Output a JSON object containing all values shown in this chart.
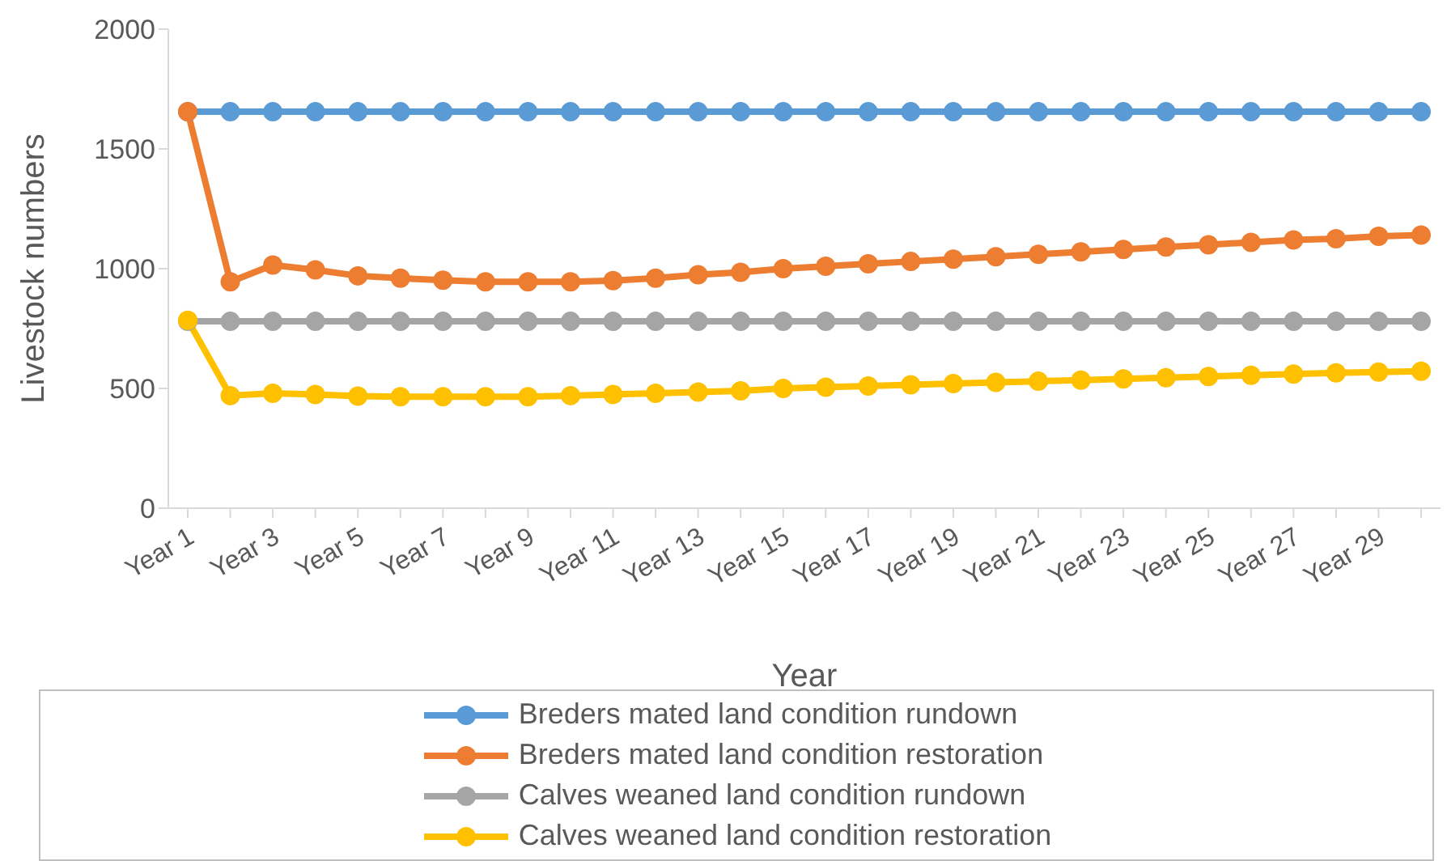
{
  "chart_data": {
    "type": "line",
    "xlabel": "Year",
    "ylabel": "Livestock numbers",
    "categories": [
      "Year 1",
      null,
      "Year 3",
      null,
      "Year 5",
      null,
      "Year 7",
      null,
      "Year 9",
      null,
      "Year 11",
      null,
      "Year 13",
      null,
      "Year 15",
      null,
      "Year 17",
      null,
      "Year 19",
      null,
      "Year 21",
      null,
      "Year 23",
      null,
      "Year 25",
      null,
      "Year 27",
      null,
      "Year 29",
      null
    ],
    "series": [
      {
        "name": "Breders mated land condition rundown",
        "color": "#5b9bd5",
        "values": [
          1655,
          1655,
          1655,
          1655,
          1655,
          1655,
          1655,
          1655,
          1655,
          1655,
          1655,
          1655,
          1655,
          1655,
          1655,
          1655,
          1655,
          1655,
          1655,
          1655,
          1655,
          1655,
          1655,
          1655,
          1655,
          1655,
          1655,
          1655,
          1655,
          1655
        ]
      },
      {
        "name": "Breders mated land condition restoration",
        "color": "#ed7d31",
        "values": [
          1655,
          945,
          1015,
          995,
          970,
          960,
          952,
          945,
          945,
          945,
          950,
          960,
          975,
          985,
          1000,
          1010,
          1020,
          1030,
          1040,
          1050,
          1060,
          1070,
          1080,
          1090,
          1100,
          1110,
          1120,
          1125,
          1135,
          1140
        ]
      },
      {
        "name": "Calves weaned land condition rundown",
        "color": "#a5a5a5",
        "values": [
          780,
          780,
          780,
          780,
          780,
          780,
          780,
          780,
          780,
          780,
          780,
          780,
          780,
          780,
          780,
          780,
          780,
          780,
          780,
          780,
          780,
          780,
          780,
          780,
          780,
          780,
          780,
          780,
          780,
          780
        ]
      },
      {
        "name": "Calves weaned land condition restoration",
        "color": "#ffc000",
        "values": [
          785,
          470,
          480,
          475,
          468,
          465,
          465,
          465,
          465,
          470,
          475,
          480,
          485,
          490,
          500,
          505,
          510,
          515,
          520,
          525,
          530,
          535,
          540,
          545,
          550,
          555,
          560,
          565,
          568,
          572
        ]
      }
    ],
    "ylim": [
      0,
      2000
    ],
    "yticks": [
      0,
      500,
      1000,
      1500,
      2000
    ],
    "grid": false,
    "legend": "bottom",
    "marker": "circle",
    "line_style": "solid"
  }
}
